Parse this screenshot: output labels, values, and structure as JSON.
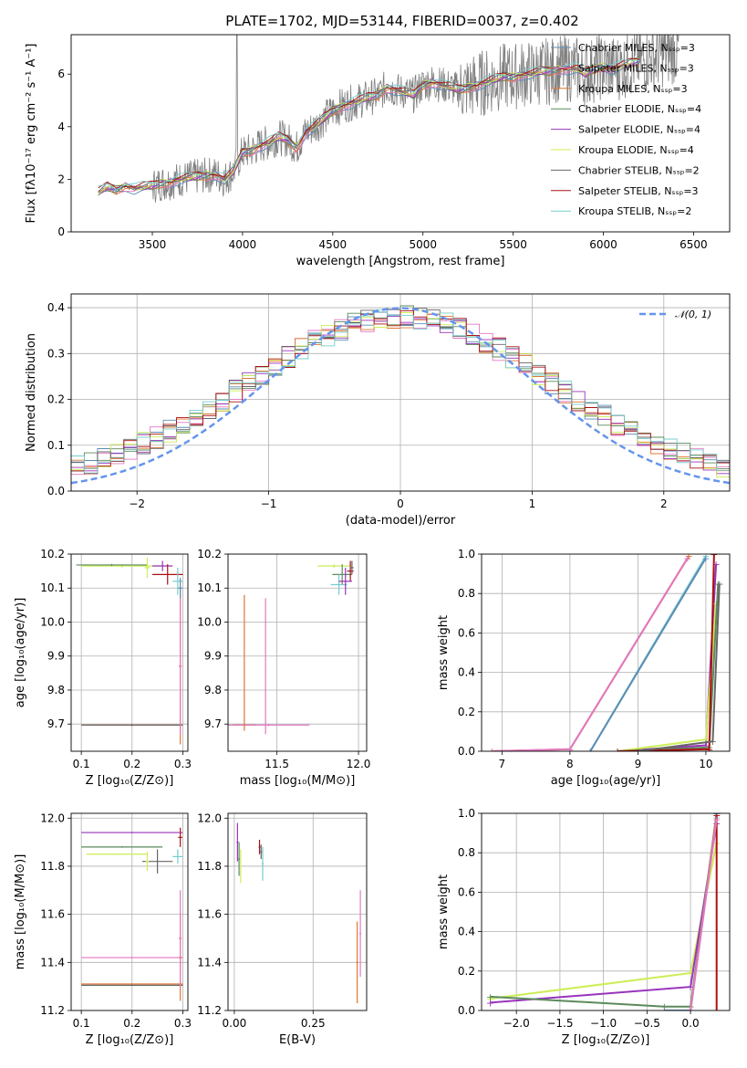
{
  "figure_title": "PLATE=1702, MJD=53144, FIBERID=0037, z=0.402",
  "colors": {
    "chabrier_miles": "#5b8db5",
    "salpeter_miles": "#e377c2",
    "kroupa_miles": "#dd7733",
    "chabrier_elodie": "#5c8a5c",
    "salpeter_elodie": "#9933bb",
    "kroupa_elodie": "#ccee55",
    "chabrier_stelib": "#666666",
    "salpeter_stelib": "#aa1111",
    "kroupa_stelib": "#77cccc",
    "data": "#808080",
    "normal": "#6495ed",
    "grid": "#b0b0b0"
  },
  "chart_data": [
    {
      "id": "spectrum",
      "type": "line",
      "title": "PLATE=1702, MJD=53144, FIBERID=0037, z=0.402",
      "xlabel": "wavelength [Angstrom, rest frame]",
      "ylabel": "Flux [fλ10⁻¹⁷ erg cm⁻² s⁻¹ A⁻¹]",
      "xlim": [
        3050,
        6700
      ],
      "ylim": [
        0,
        7.5
      ],
      "xticks": [
        "3500",
        "4000",
        "4500",
        "5000",
        "5500",
        "6000",
        "6500"
      ],
      "yticks": [
        "0",
        "2",
        "4",
        "6"
      ],
      "grid": false,
      "legend_position": "top-right",
      "legend": [
        "Chabrier MILES, Nₛₛₚ=3",
        "Salpeter MILES, Nₛₛₚ=3",
        "Kroupa MILES, Nₛₛₚ=3",
        "Chabrier ELODIE, Nₛₛₚ=4",
        "Salpeter ELODIE, Nₛₛₚ=4",
        "Kroupa ELODIE, Nₛₛₚ=4",
        "Chabrier STELIB, Nₛₛₚ=2",
        "Salpeter STELIB, Nₛₛₚ=3",
        "Kroupa STELIB, Nₛₛₚ=2"
      ],
      "model_x": [
        3200,
        3250,
        3300,
        3350,
        3400,
        3450,
        3500,
        3550,
        3600,
        3650,
        3700,
        3750,
        3800,
        3850,
        3900,
        3950,
        4000,
        4050,
        4100,
        4150,
        4200,
        4250,
        4300,
        4350,
        4400,
        4450,
        4500,
        4550,
        4600,
        4650,
        4700,
        4750,
        4800,
        4850,
        4900,
        4950,
        5000,
        5050,
        5100,
        5150,
        5200,
        5250,
        5300,
        5350,
        5400,
        5450,
        5500,
        5550,
        5600,
        5650,
        5700,
        5750,
        5800,
        5850,
        5900,
        5950,
        6000,
        6050,
        6100,
        6150,
        6200
      ],
      "model_y": [
        1.5,
        1.7,
        1.6,
        1.75,
        1.65,
        1.7,
        1.75,
        1.85,
        1.9,
        2.0,
        2.05,
        2.1,
        2.15,
        2.2,
        2.0,
        2.3,
        3.0,
        3.1,
        3.3,
        3.4,
        3.6,
        3.5,
        3.2,
        3.8,
        4.0,
        4.3,
        4.6,
        4.8,
        4.9,
        5.0,
        5.1,
        5.2,
        5.5,
        5.4,
        5.3,
        5.2,
        5.6,
        5.7,
        5.6,
        5.5,
        5.4,
        5.5,
        5.6,
        5.7,
        5.8,
        5.9,
        5.9,
        6.0,
        6.0,
        6.1,
        6.1,
        6.2,
        6.2,
        6.2,
        6.0,
        6.2,
        6.3,
        6.2,
        6.3,
        6.4,
        6.5
      ]
    },
    {
      "id": "residuals",
      "type": "line",
      "xlabel": "(data-model)/error",
      "ylabel": "Normed distribution",
      "xlim": [
        -2.5,
        2.5
      ],
      "ylim": [
        0,
        0.43
      ],
      "xticks": [
        "−2",
        "−1",
        "0",
        "1",
        "2"
      ],
      "yticks": [
        "0.0",
        "0.1",
        "0.2",
        "0.3",
        "0.4"
      ],
      "grid": true,
      "legend_position": "top-right",
      "legend": [
        "𝒩(0, 1)"
      ],
      "series": [
        {
          "name": "𝒩(0, 1)",
          "function": "standard normal pdf",
          "style": "dashed"
        }
      ]
    },
    {
      "id": "age_vs_Z",
      "type": "scatter",
      "xlabel": "Z [log₁₀(Z/Z⊙)]",
      "ylabel": "age  [log₁₀(age/yr)]",
      "xlim": [
        0.08,
        0.31
      ],
      "ylim": [
        9.62,
        10.2
      ],
      "xticks": [
        "0.1",
        "0.2",
        "0.3"
      ],
      "yticks": [
        "9.7",
        "9.8",
        "9.9",
        "10.0",
        "10.1",
        "10.2"
      ],
      "grid": true
    },
    {
      "id": "age_vs_mass",
      "type": "scatter",
      "xlabel": "mass [log₁₀(M/M⊙)]",
      "xlim": [
        11.2,
        12.05
      ],
      "ylim": [
        9.62,
        10.2
      ],
      "xticks": [
        "11.5",
        "12.0"
      ],
      "yticks": [
        "9.7",
        "9.8",
        "9.9",
        "10.0",
        "10.1",
        "10.2"
      ],
      "grid": true
    },
    {
      "id": "weight_vs_age",
      "type": "line",
      "xlabel": "age  [log₁₀(age/yr)]",
      "ylabel": "mass weight",
      "xlim": [
        6.7,
        10.35
      ],
      "ylim": [
        0,
        1.0
      ],
      "xticks": [
        "7",
        "8",
        "9",
        "10"
      ],
      "yticks": [
        "0.0",
        "0.2",
        "0.4",
        "0.6",
        "0.8",
        "1.0"
      ],
      "grid": true
    },
    {
      "id": "mass_vs_Z",
      "type": "scatter",
      "xlabel": "Z [log₁₀(Z/Z⊙)]",
      "ylabel": "mass [log₁₀(M/M⊙)]",
      "xlim": [
        0.08,
        0.31
      ],
      "ylim": [
        11.2,
        12.02
      ],
      "xticks": [
        "0.1",
        "0.2",
        "0.3"
      ],
      "yticks": [
        "11.2",
        "11.4",
        "11.6",
        "11.8",
        "12.0"
      ],
      "grid": true
    },
    {
      "id": "mass_vs_ebv",
      "type": "scatter",
      "xlabel": "E(B-V)",
      "xlim": [
        -0.02,
        0.42
      ],
      "ylim": [
        11.2,
        12.02
      ],
      "xticks": [
        "0.00",
        "0.25"
      ],
      "yticks": [
        "11.2",
        "11.4",
        "11.6",
        "11.8",
        "12.0"
      ],
      "grid": true
    },
    {
      "id": "weight_vs_Z",
      "type": "line",
      "xlabel": "Z [log₁₀(Z/Z⊙)]",
      "ylabel": "mass weight",
      "xlim": [
        -2.4,
        0.45
      ],
      "ylim": [
        0,
        1.0
      ],
      "xticks": [
        "−2.0",
        "−1.5",
        "−1.0",
        "−0.5",
        "0.0"
      ],
      "yticks": [
        "0.0",
        "0.2",
        "0.4",
        "0.6",
        "0.8",
        "1.0"
      ],
      "grid": true
    }
  ]
}
